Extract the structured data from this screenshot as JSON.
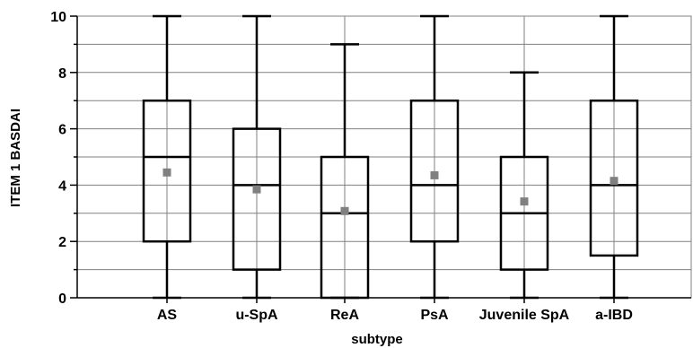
{
  "chart_data": {
    "type": "boxplot",
    "xlabel": "subtype",
    "ylabel": "ITEM 1 BASDAI",
    "ylim": [
      0,
      10
    ],
    "yticks": [
      "0",
      "2",
      "4",
      "6",
      "8",
      "10"
    ],
    "grid": true,
    "categories": [
      "AS",
      "u-SpA",
      "ReA",
      "PsA",
      "Juvenile SpA",
      "a-IBD"
    ],
    "series": [
      {
        "whisker_low": 0,
        "q1": 2,
        "median": 5,
        "q3": 7,
        "whisker_high": 10,
        "mean": 4.45
      },
      {
        "whisker_low": 0,
        "q1": 1,
        "median": 4,
        "q3": 6,
        "whisker_high": 10,
        "mean": 3.85
      },
      {
        "whisker_low": 0,
        "q1": 0,
        "median": 3,
        "q3": 5,
        "whisker_high": 9,
        "mean": 3.08
      },
      {
        "whisker_low": 0,
        "q1": 2,
        "median": 4,
        "q3": 7,
        "whisker_high": 10,
        "mean": 4.35
      },
      {
        "whisker_low": 0,
        "q1": 1,
        "median": 3,
        "q3": 5,
        "whisker_high": 8,
        "mean": 3.42
      },
      {
        "whisker_low": 0,
        "q1": 1.5,
        "median": 4,
        "q3": 7,
        "whisker_high": 10,
        "mean": 4.15
      }
    ],
    "colors": {
      "box": "#000000",
      "grid": "#808080",
      "mean_marker": "#808080"
    }
  }
}
